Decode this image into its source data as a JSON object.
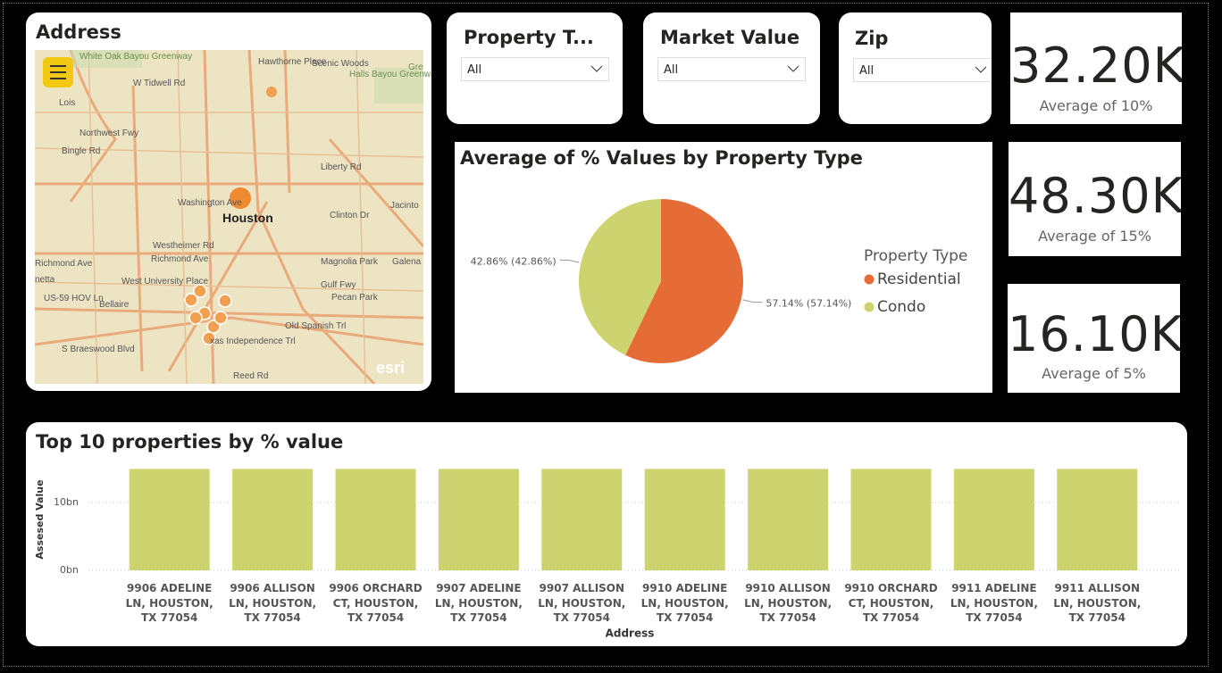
{
  "map": {
    "title": "Address",
    "labels": [
      "White Oak Bayou Greenway",
      "Hawthorne Place",
      "Scenic Woods",
      "Halls Bayou Greenway",
      "Gre",
      "Lois",
      "W Tidwell Rd",
      "Northwest Fwy",
      "Bingle Rd",
      "Houston",
      "Jacinto",
      "Liberty Rd",
      "Clinton Dr",
      "Washington Ave",
      "Westheimer Rd",
      "Richmond Ave",
      "Richmond Ave",
      "Magnolia Park",
      "Galena",
      "Gulf Fwy",
      "West University Place",
      "Bellaire",
      "Pecan Park",
      "US-59 HOV Ln",
      "Old Spanish Trl",
      "xas Independence Trl",
      "S Braeswood Blvd",
      "Reed Rd",
      "netta",
      "esri"
    ]
  },
  "slicers": [
    {
      "title": "Property T...",
      "value": "All"
    },
    {
      "title": "Market Value",
      "value": "All"
    },
    {
      "title": "Zip",
      "value": "All"
    }
  ],
  "cards": [
    {
      "value": "32.20K",
      "label": "Average of 10%"
    },
    {
      "value": "48.30K",
      "label": "Average of 15%"
    },
    {
      "value": "16.10K",
      "label": "Average of 5%"
    }
  ],
  "chart_data": [
    {
      "type": "pie",
      "title": "Average of % Values by Property Type",
      "legend_title": "Property Type",
      "categories": [
        "Residential",
        "Condo"
      ],
      "values": [
        57.14,
        42.86
      ],
      "value_labels": [
        "57.14% (57.14%)",
        "42.86% (42.86%)"
      ],
      "colors": [
        "#E66C37",
        "#CDD46F"
      ],
      "legend": "right"
    },
    {
      "type": "bar",
      "title": "Top 10 properties by % value",
      "x_label": "Address",
      "y_label": "Assesed Value",
      "categories": [
        "9906 ADELINE LN, HOUSTON, TX 77054",
        "9906 ALLISON LN, HOUSTON, TX 77054",
        "9906 ORCHARD CT, HOUSTON, TX 77054",
        "9907 ADELINE LN, HOUSTON, TX 77054",
        "9907 ALLISON LN, HOUSTON, TX 77054",
        "9910 ADELINE LN, HOUSTON, TX 77054",
        "9910 ALLISON LN, HOUSTON, TX 77054",
        "9910 ORCHARD CT, HOUSTON, TX 77054",
        "9911 ADELINE LN, HOUSTON, TX 77054",
        "9911 ALLISON LN, HOUSTON, TX 77054"
      ],
      "values": [
        14.9,
        14.9,
        14.9,
        14.9,
        14.9,
        14.9,
        14.9,
        14.9,
        14.9,
        14.9
      ],
      "color": "#CDD46F",
      "ylim": [
        0,
        16
      ],
      "yticks": [
        {
          "value": 0,
          "label": "0bn"
        },
        {
          "value": 10,
          "label": "10bn"
        }
      ],
      "grid": true
    }
  ]
}
